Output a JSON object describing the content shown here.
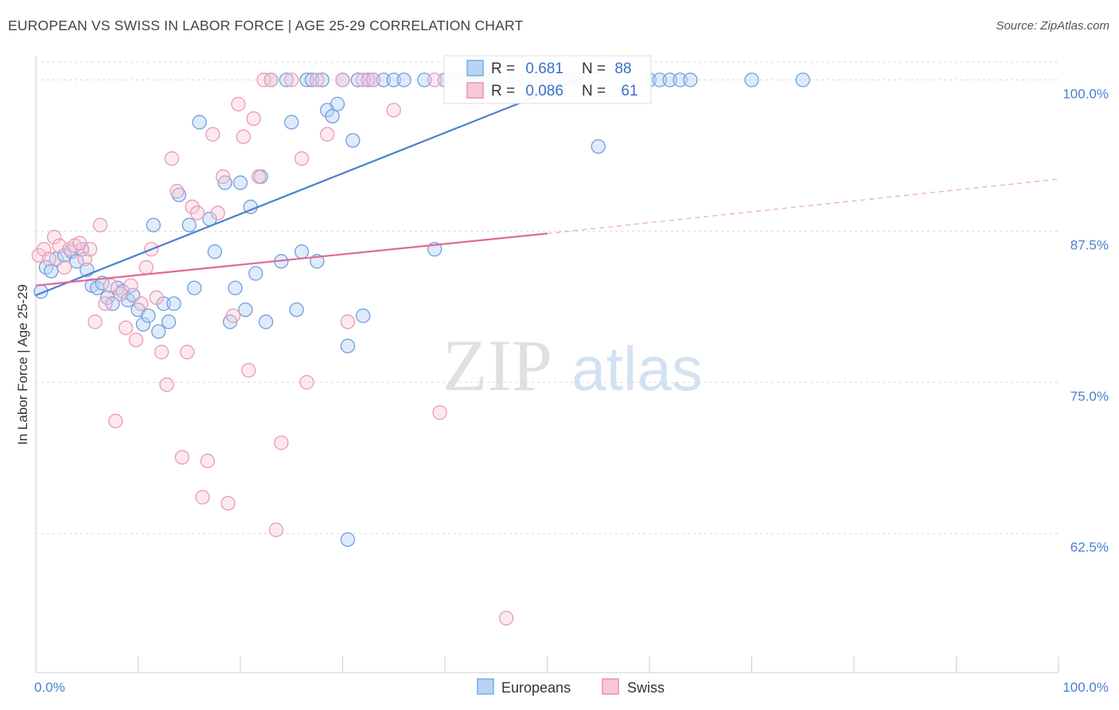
{
  "header": {
    "title": "EUROPEAN VS SWISS IN LABOR FORCE | AGE 25-29 CORRELATION CHART",
    "source": "Source: ZipAtlas.com"
  },
  "watermark": {
    "zip": "ZIP",
    "atlas": "atlas"
  },
  "legend_stats": [
    {
      "r_label": "R = ",
      "r_value": "0.681",
      "n_label": "N = ",
      "n_value": "88",
      "color": "#7aaae8",
      "fill": "#b8d3f5"
    },
    {
      "r_label": "R = ",
      "r_value": "0.086",
      "n_label": "N = ",
      "n_value": "61",
      "color": "#ee8fb0",
      "fill": "#f8c8d8"
    }
  ],
  "bottom_legend": [
    {
      "label": "Europeans",
      "color": "#7aaae8",
      "fill": "#b8d3f5"
    },
    {
      "label": "Swiss",
      "color": "#ee8fb0",
      "fill": "#f8c8d8"
    }
  ],
  "chart_data": {
    "type": "scatter",
    "title": "EUROPEAN VS SWISS IN LABOR FORCE | AGE 25-29 CORRELATION CHART",
    "xlabel": "",
    "ylabel": "In Labor Force | Age 25-29",
    "xlim": [
      0,
      100
    ],
    "ylim": [
      51,
      102
    ],
    "x_tick_labels": [
      "0.0%",
      "100.0%"
    ],
    "y_ticks": [
      62.5,
      75.0,
      87.5,
      100.0
    ],
    "y_tick_labels": [
      "62.5%",
      "75.0%",
      "87.5%",
      "100.0%"
    ],
    "grid": true,
    "legend": "top-center",
    "series": [
      {
        "name": "Europeans",
        "color": "#4a7fd0",
        "points": [
          [
            0.5,
            82.5
          ],
          [
            1.0,
            84.5
          ],
          [
            1.5,
            84.2
          ],
          [
            2.0,
            85.2
          ],
          [
            2.8,
            85.5
          ],
          [
            3.5,
            85.8
          ],
          [
            4.0,
            85.0
          ],
          [
            4.5,
            86.0
          ],
          [
            5.0,
            84.3
          ],
          [
            5.5,
            83.0
          ],
          [
            6.0,
            82.8
          ],
          [
            6.5,
            83.2
          ],
          [
            7.0,
            82.0
          ],
          [
            7.5,
            81.5
          ],
          [
            8.0,
            82.8
          ],
          [
            8.5,
            82.5
          ],
          [
            9.0,
            81.8
          ],
          [
            9.5,
            82.2
          ],
          [
            10.0,
            81.0
          ],
          [
            10.5,
            79.8
          ],
          [
            11.0,
            80.5
          ],
          [
            11.5,
            88.0
          ],
          [
            12.0,
            79.2
          ],
          [
            12.5,
            81.5
          ],
          [
            13.0,
            80.0
          ],
          [
            13.5,
            81.5
          ],
          [
            14.0,
            90.5
          ],
          [
            15.0,
            88.0
          ],
          [
            15.5,
            82.8
          ],
          [
            16.0,
            96.5
          ],
          [
            17.0,
            88.5
          ],
          [
            17.5,
            85.8
          ],
          [
            18.5,
            91.5
          ],
          [
            19.0,
            80.0
          ],
          [
            19.5,
            82.8
          ],
          [
            20.0,
            91.5
          ],
          [
            20.5,
            81.0
          ],
          [
            21.0,
            89.5
          ],
          [
            21.5,
            84.0
          ],
          [
            22.0,
            92.0
          ],
          [
            22.5,
            80.0
          ],
          [
            23.0,
            100.0
          ],
          [
            24.0,
            85.0
          ],
          [
            24.5,
            100.0
          ],
          [
            25.0,
            96.5
          ],
          [
            25.5,
            81.0
          ],
          [
            26.0,
            85.8
          ],
          [
            26.5,
            100.0
          ],
          [
            27.0,
            100.0
          ],
          [
            27.5,
            85.0
          ],
          [
            28.0,
            100.0
          ],
          [
            28.5,
            97.5
          ],
          [
            29.0,
            97.0
          ],
          [
            29.5,
            98.0
          ],
          [
            30.0,
            100.0
          ],
          [
            30.5,
            78.0
          ],
          [
            31.0,
            95.0
          ],
          [
            31.5,
            100.0
          ],
          [
            32.0,
            80.5
          ],
          [
            32.5,
            100.0
          ],
          [
            33.0,
            100.0
          ],
          [
            34.0,
            100.0
          ],
          [
            35.0,
            100.0
          ],
          [
            36.0,
            100.0
          ],
          [
            38.0,
            100.0
          ],
          [
            39.0,
            86.0
          ],
          [
            40.0,
            100.0
          ],
          [
            41.0,
            100.0
          ],
          [
            42.0,
            100.0
          ],
          [
            43.0,
            100.0
          ],
          [
            44.0,
            100.0
          ],
          [
            45.0,
            100.0
          ],
          [
            47.0,
            100.0
          ],
          [
            49.0,
            100.0
          ],
          [
            50.0,
            100.0
          ],
          [
            51.0,
            100.0
          ],
          [
            52.0,
            100.0
          ],
          [
            53.0,
            100.0
          ],
          [
            55.0,
            94.5
          ],
          [
            56.0,
            100.0
          ],
          [
            60.0,
            100.0
          ],
          [
            61.0,
            100.0
          ],
          [
            62.0,
            100.0
          ],
          [
            63.0,
            100.0
          ],
          [
            64.0,
            100.0
          ],
          [
            70.0,
            100.0
          ],
          [
            75.0,
            100.0
          ],
          [
            30.5,
            62.0
          ]
        ],
        "trend": {
          "x": [
            0,
            56
          ],
          "y": [
            82.2,
            101.0
          ],
          "style": "solid"
        }
      },
      {
        "name": "Swiss",
        "color": "#e06a95",
        "points": [
          [
            0.3,
            85.5
          ],
          [
            0.8,
            86.0
          ],
          [
            1.3,
            85.2
          ],
          [
            1.8,
            87.0
          ],
          [
            2.3,
            86.3
          ],
          [
            2.8,
            84.5
          ],
          [
            3.3,
            86.0
          ],
          [
            3.8,
            86.3
          ],
          [
            4.3,
            86.5
          ],
          [
            4.8,
            85.2
          ],
          [
            5.3,
            86.0
          ],
          [
            5.8,
            80.0
          ],
          [
            6.3,
            88.0
          ],
          [
            6.8,
            81.5
          ],
          [
            7.3,
            83.0
          ],
          [
            7.8,
            71.8
          ],
          [
            8.3,
            82.3
          ],
          [
            8.8,
            79.5
          ],
          [
            9.3,
            83.0
          ],
          [
            9.8,
            78.5
          ],
          [
            10.3,
            81.5
          ],
          [
            10.8,
            84.5
          ],
          [
            11.3,
            86.0
          ],
          [
            11.8,
            82.0
          ],
          [
            12.3,
            77.5
          ],
          [
            12.8,
            74.8
          ],
          [
            13.3,
            93.5
          ],
          [
            13.8,
            90.8
          ],
          [
            14.3,
            68.8
          ],
          [
            14.8,
            77.5
          ],
          [
            15.3,
            89.5
          ],
          [
            15.8,
            89.0
          ],
          [
            16.3,
            65.5
          ],
          [
            16.8,
            68.5
          ],
          [
            17.3,
            95.5
          ],
          [
            17.8,
            89.0
          ],
          [
            18.3,
            92.0
          ],
          [
            18.8,
            65.0
          ],
          [
            19.3,
            80.5
          ],
          [
            19.8,
            98.0
          ],
          [
            20.3,
            95.3
          ],
          [
            20.8,
            76.0
          ],
          [
            21.3,
            96.8
          ],
          [
            21.8,
            92.0
          ],
          [
            22.3,
            100.0
          ],
          [
            23.0,
            100.0
          ],
          [
            23.5,
            62.8
          ],
          [
            24.0,
            70.0
          ],
          [
            25.0,
            100.0
          ],
          [
            26.0,
            93.5
          ],
          [
            26.5,
            75.0
          ],
          [
            27.5,
            100.0
          ],
          [
            28.5,
            95.5
          ],
          [
            30.0,
            100.0
          ],
          [
            30.5,
            80.0
          ],
          [
            32.0,
            100.0
          ],
          [
            33.0,
            100.0
          ],
          [
            35.0,
            97.5
          ],
          [
            39.0,
            100.0
          ],
          [
            39.5,
            72.5
          ],
          [
            46.0,
            55.5
          ]
        ],
        "trend": {
          "x": [
            0,
            50
          ],
          "y": [
            83.0,
            87.3
          ],
          "style": "solid",
          "extension": {
            "x": [
              50,
              100
            ],
            "y": [
              87.3,
              91.8
            ],
            "style": "dashed"
          }
        }
      }
    ]
  }
}
